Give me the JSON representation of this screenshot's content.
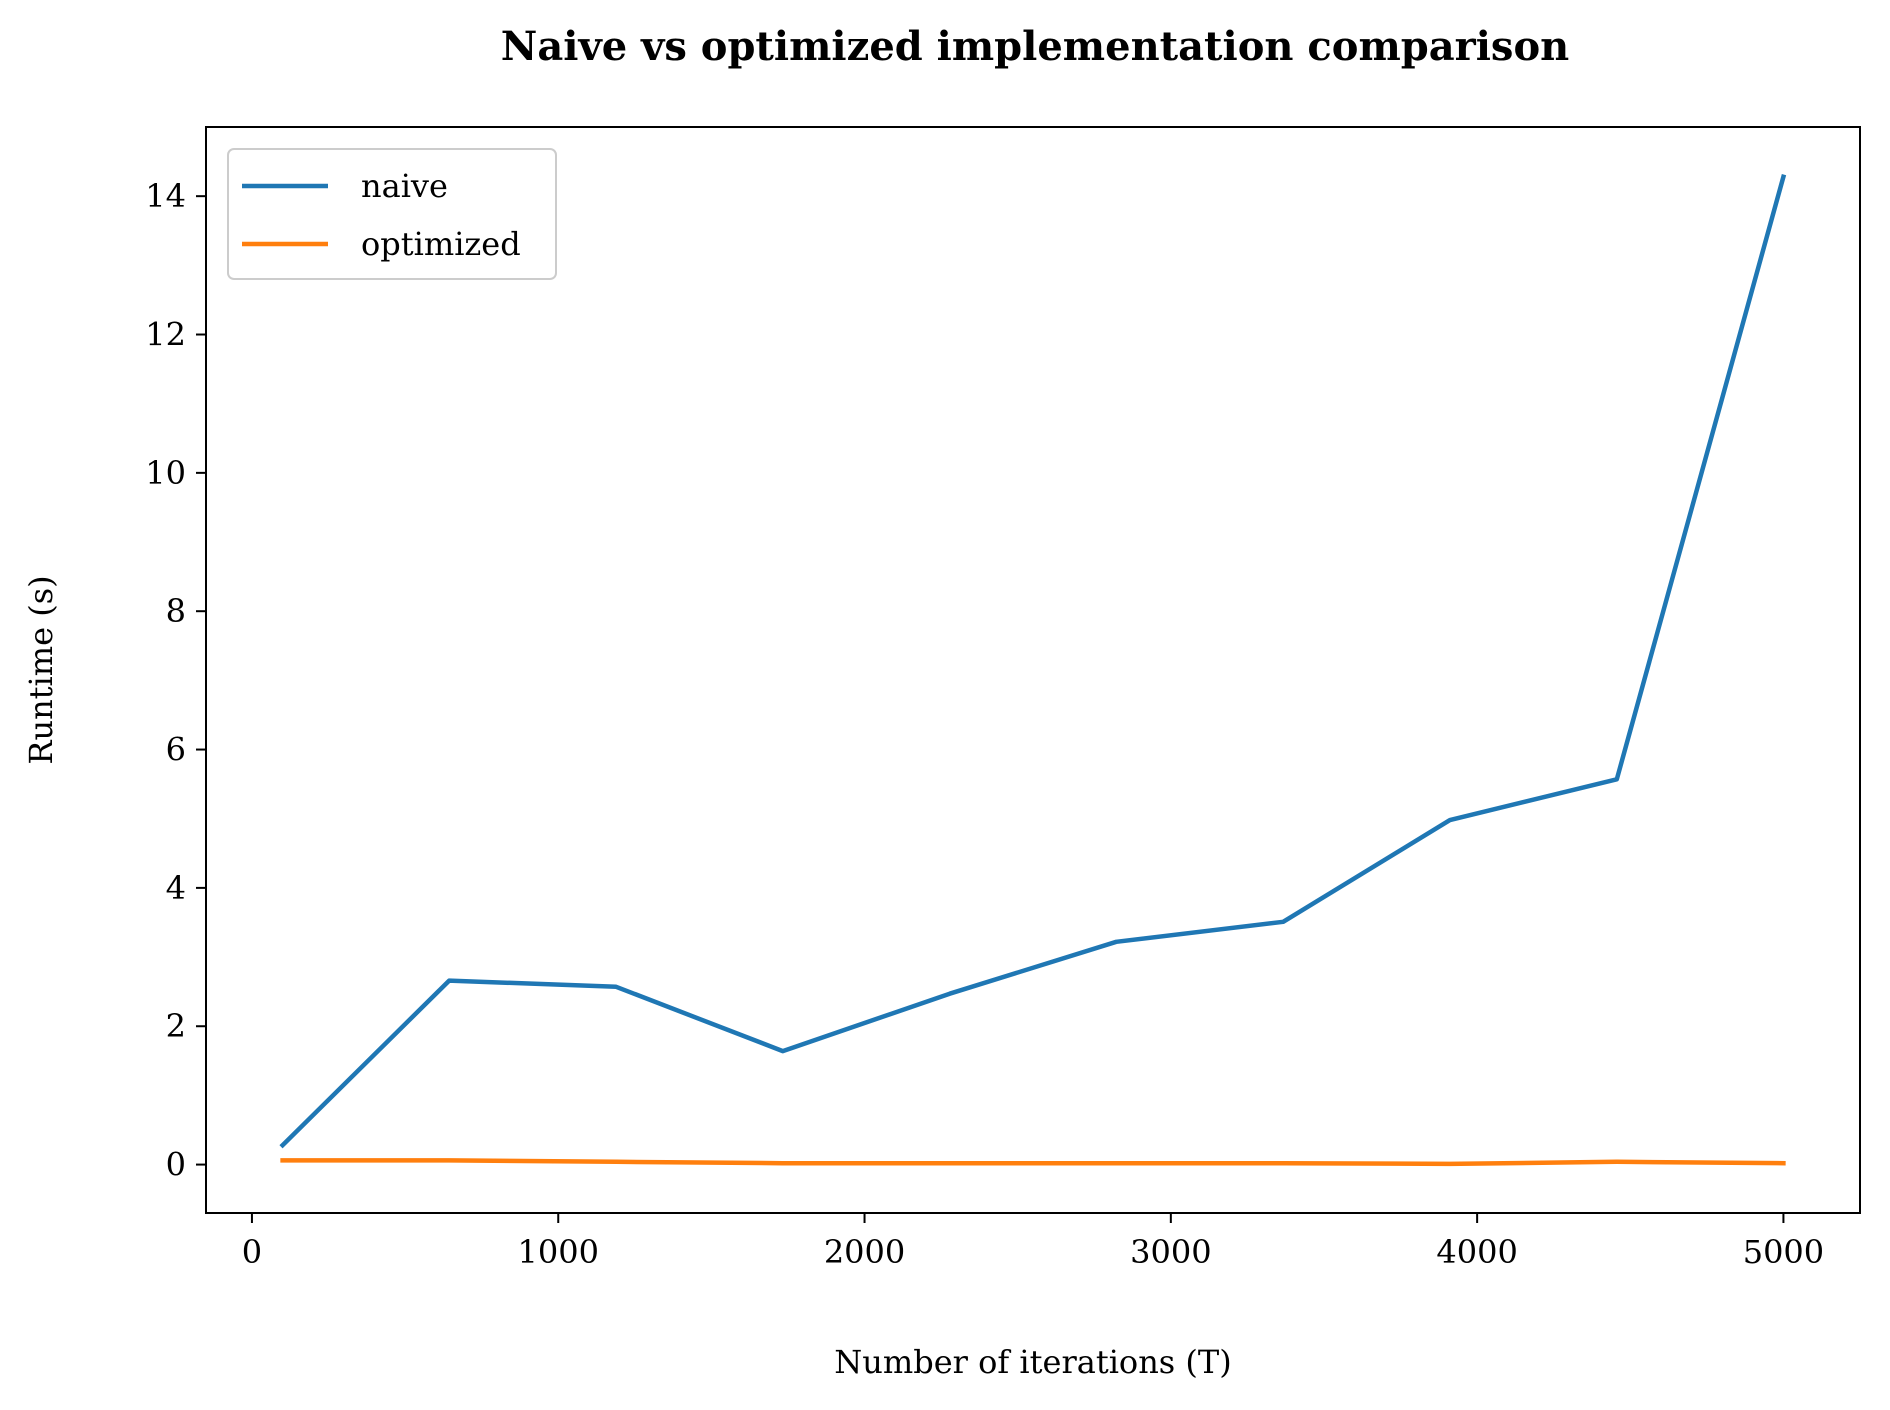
{
  "chart_data": {
    "type": "line",
    "title": "Naive vs optimized implementation comparison",
    "xlabel": "Number of iterations (T)",
    "ylabel": "Runtime (s)",
    "xlim": [
      -150,
      5250
    ],
    "ylim": [
      -0.7,
      15.0
    ],
    "xticks": [
      0,
      1000,
      2000,
      3000,
      4000,
      5000
    ],
    "yticks": [
      0,
      2,
      4,
      6,
      8,
      10,
      12,
      14
    ],
    "grid": false,
    "legend_position": "top-left",
    "x": [
      100,
      644,
      1189,
      1733,
      2278,
      2822,
      3367,
      3911,
      4456,
      5000
    ],
    "series": [
      {
        "name": "naive",
        "color": "#1f77b4",
        "values": [
          0.28,
          2.66,
          2.57,
          1.64,
          2.47,
          3.22,
          3.51,
          4.98,
          5.57,
          14.28
        ]
      },
      {
        "name": "optimized",
        "color": "#ff7f0e",
        "values": [
          0.06,
          0.06,
          0.04,
          0.02,
          0.02,
          0.02,
          0.02,
          0.01,
          0.04,
          0.02
        ]
      }
    ]
  }
}
